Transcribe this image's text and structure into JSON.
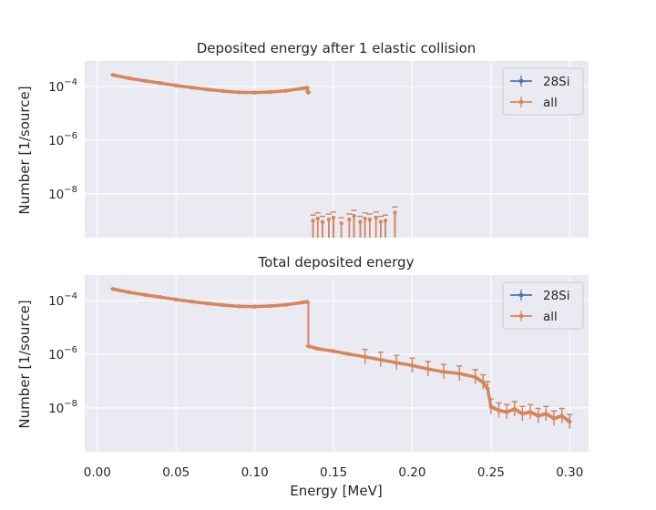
{
  "chart_data": [
    {
      "type": "line",
      "title": "Deposited energy after 1 elastic collision",
      "xlabel": "",
      "ylabel": "Number [1/source]",
      "yscale": "log",
      "xlim": [
        -0.008,
        0.312
      ],
      "ylim": [
        2.3e-10,
        0.0009
      ],
      "x_ticks": [
        0.0,
        0.05,
        0.1,
        0.15,
        0.2,
        0.25,
        0.3
      ],
      "x_tick_labels": [],
      "y_ticks": [
        1e-08,
        1e-06,
        0.0001
      ],
      "y_tick_labels": [
        "10^-8",
        "10^-6",
        "10^-4"
      ],
      "grid": true,
      "legend": "top-right",
      "series": [
        {
          "name": "28Si",
          "color": "#4c72b0",
          "x": [
            0.01,
            0.02,
            0.03,
            0.04,
            0.05,
            0.06,
            0.07,
            0.08,
            0.09,
            0.1,
            0.11,
            0.12,
            0.13,
            0.133,
            0.134
          ],
          "values": [
            0.00027,
            0.000205,
            0.000165,
            0.000135,
            0.00011,
            9.2e-05,
            7.8e-05,
            6.8e-05,
            6.1e-05,
            6e-05,
            6.3e-05,
            7e-05,
            8.5e-05,
            9e-05,
            6e-05
          ]
        },
        {
          "name": "all",
          "color": "#dd8452",
          "x": [
            0.01,
            0.02,
            0.03,
            0.04,
            0.05,
            0.06,
            0.07,
            0.08,
            0.09,
            0.1,
            0.11,
            0.12,
            0.13,
            0.133,
            0.134
          ],
          "values": [
            0.00027,
            0.000205,
            0.000165,
            0.000135,
            0.00011,
            9.2e-05,
            7.8e-05,
            6.8e-05,
            6.1e-05,
            6e-05,
            6.3e-05,
            7e-05,
            8.5e-05,
            9e-05,
            6e-05
          ]
        }
      ],
      "sparse_points": {
        "x": [
          0.137,
          0.14,
          0.143,
          0.147,
          0.15,
          0.155,
          0.16,
          0.163,
          0.167,
          0.17,
          0.173,
          0.177,
          0.18,
          0.183,
          0.189
        ],
        "values": [
          1e-09,
          1.2e-09,
          9e-10,
          1.1e-09,
          1.3e-09,
          8e-10,
          1.1e-09,
          1.5e-09,
          9e-10,
          1.2e-09,
          1.1e-09,
          1.3e-09,
          9e-10,
          1e-09,
          2e-09
        ]
      }
    },
    {
      "type": "line",
      "title": "Total deposited energy",
      "xlabel": "Energy [MeV]",
      "ylabel": "Number [1/source]",
      "yscale": "log",
      "xlim": [
        -0.008,
        0.312
      ],
      "ylim": [
        2.3e-10,
        0.0009
      ],
      "x_ticks": [
        0.0,
        0.05,
        0.1,
        0.15,
        0.2,
        0.25,
        0.3
      ],
      "x_tick_labels": [
        "0.00",
        "0.05",
        "0.10",
        "0.15",
        "0.20",
        "0.25",
        "0.30"
      ],
      "y_ticks": [
        1e-08,
        1e-06,
        0.0001
      ],
      "y_tick_labels": [
        "10^-8",
        "10^-6",
        "10^-4"
      ],
      "grid": true,
      "legend": "top-right",
      "series": [
        {
          "name": "28Si",
          "color": "#4c72b0",
          "x": [
            0.01,
            0.02,
            0.03,
            0.04,
            0.05,
            0.06,
            0.07,
            0.08,
            0.09,
            0.1,
            0.11,
            0.12,
            0.13,
            0.133,
            0.134,
            0.14,
            0.15,
            0.16,
            0.17,
            0.18,
            0.19,
            0.2,
            0.21,
            0.22,
            0.23,
            0.24,
            0.245,
            0.248,
            0.25,
            0.255,
            0.26,
            0.265,
            0.27,
            0.275,
            0.28,
            0.285,
            0.29,
            0.295,
            0.3
          ],
          "values": [
            0.00027,
            0.000205,
            0.000165,
            0.000135,
            0.00011,
            9.2e-05,
            7.8e-05,
            6.8e-05,
            6.1e-05,
            6e-05,
            6.3e-05,
            7e-05,
            8.5e-05,
            9e-05,
            2e-06,
            1.6e-06,
            1.3e-06,
            1e-06,
            8e-07,
            6.2e-07,
            4.8e-07,
            3.8e-07,
            2.8e-07,
            2.2e-07,
            1.9e-07,
            1.4e-07,
            9e-08,
            5e-08,
            1.1e-08,
            8e-09,
            7e-09,
            9e-09,
            6e-09,
            7e-09,
            5e-09,
            6e-09,
            4e-09,
            5e-09,
            3e-09
          ]
        },
        {
          "name": "all",
          "color": "#dd8452",
          "x": [
            0.01,
            0.02,
            0.03,
            0.04,
            0.05,
            0.06,
            0.07,
            0.08,
            0.09,
            0.1,
            0.11,
            0.12,
            0.13,
            0.133,
            0.134,
            0.14,
            0.15,
            0.16,
            0.17,
            0.18,
            0.19,
            0.2,
            0.21,
            0.22,
            0.23,
            0.24,
            0.245,
            0.248,
            0.25,
            0.255,
            0.26,
            0.265,
            0.27,
            0.275,
            0.28,
            0.285,
            0.29,
            0.295,
            0.3
          ],
          "values": [
            0.00027,
            0.000205,
            0.000165,
            0.000135,
            0.00011,
            9.2e-05,
            7.8e-05,
            6.8e-05,
            6.1e-05,
            6e-05,
            6.3e-05,
            7e-05,
            8.5e-05,
            9e-05,
            2e-06,
            1.6e-06,
            1.3e-06,
            1e-06,
            8e-07,
            6.2e-07,
            4.8e-07,
            3.8e-07,
            2.8e-07,
            2.2e-07,
            1.9e-07,
            1.4e-07,
            9e-08,
            5e-08,
            1.1e-08,
            8e-09,
            7e-09,
            9e-09,
            6e-09,
            7e-09,
            5e-09,
            6e-09,
            4e-09,
            5e-09,
            3e-09
          ]
        }
      ]
    }
  ]
}
